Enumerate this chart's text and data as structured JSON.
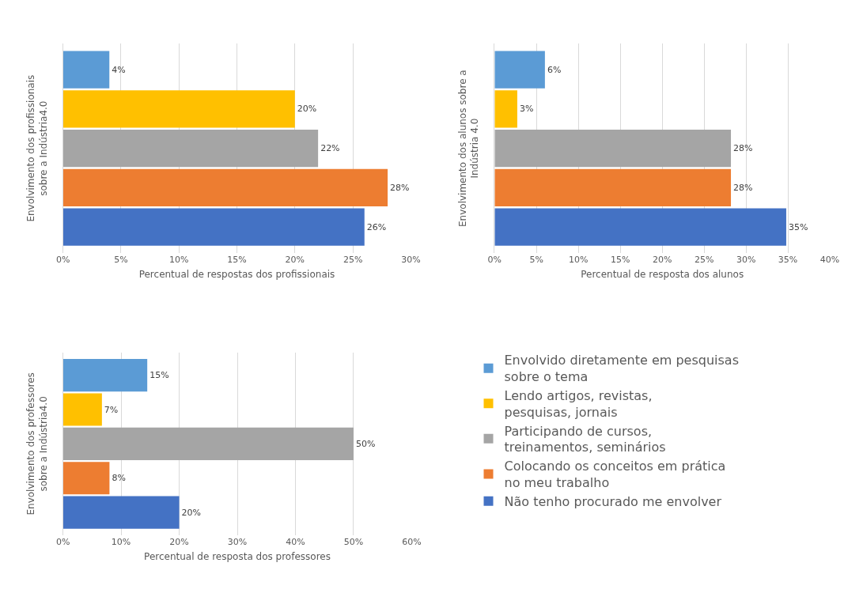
{
  "chart_data": [
    {
      "type": "bar",
      "orientation": "horizontal",
      "categories": [
        null
      ],
      "ylabel": "Envolvimento dos profissionais sobre a Indústria4.0",
      "xlabel": "Percentual de respostas dos profissionais",
      "xlim": [
        0,
        30
      ],
      "xticks": [
        {
          "value": 0,
          "label": "0%"
        },
        {
          "value": 5,
          "label": "5%"
        },
        {
          "value": 10,
          "label": "10%"
        },
        {
          "value": 15,
          "label": "15%"
        },
        {
          "value": 20,
          "label": "20%"
        },
        {
          "value": 25,
          "label": "25%"
        },
        {
          "value": 30,
          "label": "30%"
        }
      ],
      "grid": "x",
      "legend": false,
      "series": [
        {
          "color": "#5b9bd5",
          "values": [
            4
          ],
          "value_labels": [
            "4%"
          ]
        },
        {
          "color": "#ffc000",
          "values": [
            20
          ],
          "value_labels": [
            "20%"
          ]
        },
        {
          "color": "#a5a5a5",
          "values": [
            22
          ],
          "value_labels": [
            "22%"
          ]
        },
        {
          "color": "#ed7d31",
          "values": [
            28
          ],
          "value_labels": [
            "28%"
          ]
        },
        {
          "color": "#4472c4",
          "values": [
            26
          ],
          "value_labels": [
            "26%"
          ]
        }
      ]
    },
    {
      "type": "bar",
      "orientation": "horizontal",
      "categories": [
        null
      ],
      "ylabel": "Envolvimento dos alunos sobre a Indústria 4.0",
      "xlabel": "Percentual de resposta dos alunos",
      "xlim": [
        0,
        40
      ],
      "xticks": [
        {
          "value": 0,
          "label": "0%"
        },
        {
          "value": 5,
          "label": "5%"
        },
        {
          "value": 10,
          "label": "10%"
        },
        {
          "value": 15,
          "label": "15%"
        },
        {
          "value": 20,
          "label": "20%"
        },
        {
          "value": 25,
          "label": "25%"
        },
        {
          "value": 30,
          "label": "30%"
        },
        {
          "value": 35,
          "label": "35%"
        },
        {
          "value": 40,
          "label": "40%"
        }
      ],
      "grid": "x",
      "legend": false,
      "series": [
        {
          "color": "#5b9bd5",
          "values": [
            6
          ],
          "value_labels": [
            "6%"
          ]
        },
        {
          "color": "#ffc000",
          "values": [
            2.7
          ],
          "value_labels": [
            "3%"
          ]
        },
        {
          "color": "#a5a5a5",
          "values": [
            28.2
          ],
          "value_labels": [
            "28%"
          ]
        },
        {
          "color": "#ed7d31",
          "values": [
            28.2
          ],
          "value_labels": [
            "28%"
          ]
        },
        {
          "color": "#4472c4",
          "values": [
            34.8
          ],
          "value_labels": [
            "35%"
          ]
        }
      ]
    },
    {
      "type": "bar",
      "orientation": "horizontal",
      "categories": [
        null
      ],
      "ylabel": "Envolvimento dos professores sobre a Indústria4.0",
      "xlabel": "Percentual de resposta dos professores",
      "xlim": [
        0,
        60
      ],
      "xticks": [
        {
          "value": 0,
          "label": "0%"
        },
        {
          "value": 10,
          "label": "10%"
        },
        {
          "value": 20,
          "label": "20%"
        },
        {
          "value": 30,
          "label": "30%"
        },
        {
          "value": 40,
          "label": "40%"
        },
        {
          "value": 50,
          "label": "50%"
        },
        {
          "value": 60,
          "label": "60%"
        }
      ],
      "grid": "x",
      "legend": "right",
      "series": [
        {
          "name": "Envolvido diretamente em pesquisas sobre o tema",
          "color": "#5b9bd5",
          "values": [
            14.5
          ],
          "value_labels": [
            "15%"
          ]
        },
        {
          "name": "Lendo artigos, revistas, pesquisas, jornais",
          "color": "#ffc000",
          "values": [
            6.7
          ],
          "value_labels": [
            "7%"
          ]
        },
        {
          "name": "Participando de cursos, treinamentos, seminários",
          "color": "#a5a5a5",
          "values": [
            50
          ],
          "value_labels": [
            "50%"
          ]
        },
        {
          "name": "Colocando os conceitos em prática no meu trabalho",
          "color": "#ed7d31",
          "values": [
            8
          ],
          "value_labels": [
            "8%"
          ]
        },
        {
          "name": "Não tenho procurado me envolver",
          "color": "#4472c4",
          "values": [
            20
          ],
          "value_labels": [
            "20%"
          ]
        }
      ]
    }
  ]
}
